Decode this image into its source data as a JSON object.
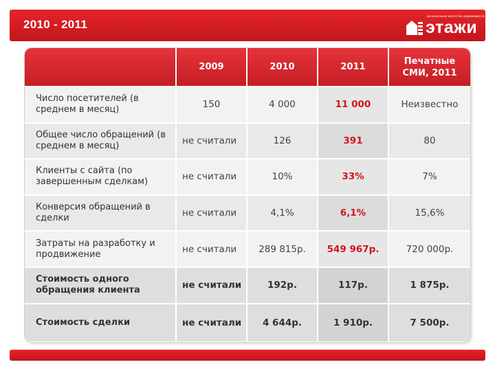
{
  "header": {
    "title": "2010 - 2011",
    "logo_tagline": "региональная агентство недвижимости",
    "logo_word": "этажи"
  },
  "table": {
    "columns": [
      "",
      "2009",
      "2010",
      "2011",
      "Печатные СМИ, 2011"
    ],
    "rows": [
      {
        "label": "Число посетителей (в среднем в месяц)",
        "cells": [
          "150",
          "4 000",
          "11 000",
          "Неизвестно"
        ]
      },
      {
        "label": "Общее число обращений (в среднем в месяц)",
        "cells": [
          "не считали",
          "126",
          "391",
          "80"
        ]
      },
      {
        "label": "Клиенты с сайта (по завершенным сделкам)",
        "cells": [
          "не считали",
          "10%",
          "33%",
          "7%"
        ]
      },
      {
        "label": "Конверсия обращений в сделки",
        "cells": [
          "не считали",
          "4,1%",
          "6,1%",
          "15,6%"
        ]
      },
      {
        "label": "Затраты на разработку и продвижение",
        "cells": [
          "не считали",
          "289 815р.",
          "549 967р.",
          "720 000р."
        ]
      },
      {
        "label": "Стоимость одного обращения клиента",
        "cells": [
          "не считали",
          "192р.",
          "117р.",
          "1 875р."
        ]
      },
      {
        "label": "Стоимость сделки",
        "cells": [
          "не считали",
          "4 644р.",
          "1 910р.",
          "7 500р."
        ]
      }
    ]
  },
  "colors": {
    "brand_red": "#d1161d",
    "header_bar": "#d11c23"
  }
}
